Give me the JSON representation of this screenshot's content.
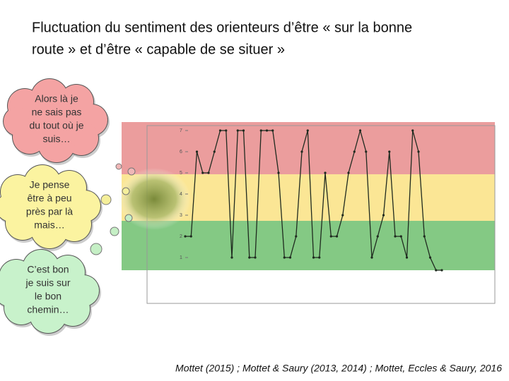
{
  "header": {
    "title_lines": [
      "Fluctuation du sentiment des orienteurs d’être « sur la bonne",
      "route » et d’être « capable de se situer »"
    ]
  },
  "bubbles": [
    {
      "lines": [
        "Alors là je",
        "ne sais pas",
        "du tout où je",
        "suis…"
      ]
    },
    {
      "lines": [
        "Je pense",
        "être à peu",
        "près par là",
        "mais…"
      ]
    },
    {
      "lines": [
        "C’est bon",
        "je suis sur",
        "le bon",
        "chemin…"
      ]
    }
  ],
  "chart": {
    "type": "line",
    "color": "#1f2a1f",
    "values": [
      2,
      2,
      6,
      5,
      5,
      6,
      7,
      7,
      1,
      7,
      7,
      1,
      1,
      7,
      7,
      7,
      5,
      1,
      1,
      2,
      6,
      7,
      1,
      1,
      5,
      2,
      2,
      3,
      5,
      6,
      7,
      6,
      1,
      2,
      3,
      6,
      2,
      2,
      1,
      7,
      6,
      2,
      1,
      0.4,
      0.4
    ],
    "ylim": [
      -1.2,
      7.5
    ],
    "yticks": [
      1,
      2,
      3,
      4,
      5,
      6,
      7
    ]
  },
  "citation": "Mottet (2015) ; Mottet & Saury (2013, 2014) ; Mottet, Eccles & Saury, 2016"
}
